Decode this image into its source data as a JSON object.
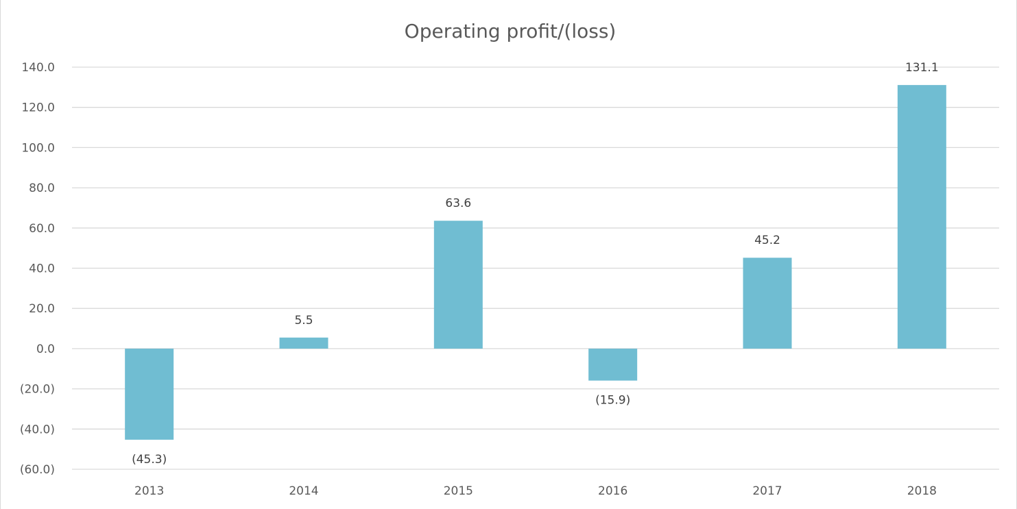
{
  "chart_data": {
    "type": "bar",
    "title": "Operating profit/(loss)",
    "xlabel": "",
    "ylabel": "",
    "categories": [
      "2013",
      "2014",
      "2015",
      "2016",
      "2017",
      "2018"
    ],
    "values": [
      -45.3,
      5.5,
      63.6,
      -15.9,
      45.2,
      131.1
    ],
    "data_labels": [
      "(45.3)",
      "5.5",
      "63.6",
      "(15.9)",
      "45.2",
      "131.1"
    ],
    "ylim": [
      -60,
      140
    ],
    "y_ticks": [
      140,
      120,
      100,
      80,
      60,
      40,
      20,
      0,
      -20,
      -40,
      -60
    ],
    "y_tick_labels": [
      "140.0",
      "120.0",
      "100.0",
      "80.0",
      "60.0",
      "40.0",
      "20.0",
      "0.0",
      "(20.0)",
      "(40.0)",
      "(60.0)"
    ],
    "grid": true,
    "legend": "none",
    "colors": {
      "bar": "#70bdd2",
      "grid": "#d9d9d9",
      "axis_text": "#595959",
      "label_text": "#404040",
      "title_text": "#595959"
    }
  }
}
